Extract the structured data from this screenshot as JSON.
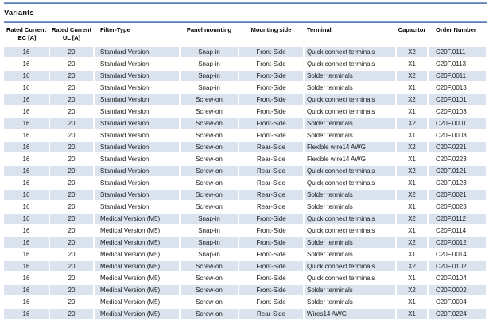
{
  "section": {
    "title": "Variants"
  },
  "colors": {
    "rule_blue": "#4e74b0",
    "row_shade": "#dbe3ee",
    "text": "#1b1b1b"
  },
  "table": {
    "column_keys": [
      "iec-current",
      "ul-current",
      "filter-type",
      "panel-mounting",
      "mounting-side",
      "terminal",
      "capacitor",
      "order-number"
    ],
    "columns": [
      {
        "line1": "Rated Current",
        "line2": "IEC [A]"
      },
      {
        "line1": "Rated Current",
        "line2": "UL [A]"
      },
      {
        "line1": "Filter-Type"
      },
      {
        "line1": "Panel mounting"
      },
      {
        "line1": "Mounting side"
      },
      {
        "line1": "Terminal"
      },
      {
        "line1": "Capacitor"
      },
      {
        "line1": "Order Number"
      }
    ],
    "rows": [
      [
        "16",
        "20",
        "Standard Version",
        "Snap-in",
        "Front-Side",
        "Quick connect terminals",
        "X2",
        "C20F.0111"
      ],
      [
        "16",
        "20",
        "Standard Version",
        "Snap-in",
        "Front-Side",
        "Quick connect terminals",
        "X1",
        "C20F.0113"
      ],
      [
        "16",
        "20",
        "Standard Version",
        "Snap-in",
        "Front-Side",
        "Solder terminals",
        "X2",
        "C20F.0011"
      ],
      [
        "16",
        "20",
        "Standard Version",
        "Snap-in",
        "Front-Side",
        "Solder terminals",
        "X1",
        "C20F.0013"
      ],
      [
        "16",
        "20",
        "Standard Version",
        "Screw-on",
        "Front-Side",
        "Quick connect terminals",
        "X2",
        "C20F.0101"
      ],
      [
        "16",
        "20",
        "Standard Version",
        "Screw-on",
        "Front-Side",
        "Quick connect terminals",
        "X1",
        "C20F.0103"
      ],
      [
        "16",
        "20",
        "Standard Version",
        "Screw-on",
        "Front-Side",
        "Solder terminals",
        "X2",
        "C20F.0001"
      ],
      [
        "16",
        "20",
        "Standard Version",
        "Screw-on",
        "Front-Side",
        "Solder terminals",
        "X1",
        "C20F.0003"
      ],
      [
        "16",
        "20",
        "Standard Version",
        "Screw-on",
        "Rear-Side",
        "Flexible wire14 AWG",
        "X2",
        "C20F.0221"
      ],
      [
        "16",
        "20",
        "Standard Version",
        "Screw-on",
        "Rear-Side",
        "Flexible wire14 AWG",
        "X1",
        "C20F.0223"
      ],
      [
        "16",
        "20",
        "Standard Version",
        "Screw-on",
        "Rear-Side",
        "Quick connect terminals",
        "X2",
        "C20F.0121"
      ],
      [
        "16",
        "20",
        "Standard Version",
        "Screw-on",
        "Rear-Side",
        "Quick connect terminals",
        "X1",
        "C20F.0123"
      ],
      [
        "16",
        "20",
        "Standard Version",
        "Screw-on",
        "Rear-Side",
        "Solder terminals",
        "X2",
        "C20F.0021"
      ],
      [
        "16",
        "20",
        "Standard Version",
        "Screw-on",
        "Rear-Side",
        "Solder terminals",
        "X1",
        "C20F.0023"
      ],
      [
        "16",
        "20",
        "Medical Version (M5)",
        "Snap-in",
        "Front-Side",
        "Quick connect terminals",
        "X2",
        "C20F.0112"
      ],
      [
        "16",
        "20",
        "Medical Version (M5)",
        "Snap-in",
        "Front-Side",
        "Quick connect terminals",
        "X1",
        "C20F.0114"
      ],
      [
        "16",
        "20",
        "Medical Version (M5)",
        "Snap-in",
        "Front-Side",
        "Solder terminals",
        "X2",
        "C20F.0012"
      ],
      [
        "16",
        "20",
        "Medical Version (M5)",
        "Snap-in",
        "Front-Side",
        "Solder terminals",
        "X1",
        "C20F.0014"
      ],
      [
        "16",
        "20",
        "Medical Version (M5)",
        "Screw-on",
        "Front-Side",
        "Quick connect terminals",
        "X2",
        "C20F.0102"
      ],
      [
        "16",
        "20",
        "Medical Version (M5)",
        "Screw-on",
        "Front-Side",
        "Quick connect terminals",
        "X1",
        "C20F.0104"
      ],
      [
        "16",
        "20",
        "Medical Version (M5)",
        "Screw-on",
        "Front-Side",
        "Solder terminals",
        "X2",
        "C20F.0002"
      ],
      [
        "16",
        "20",
        "Medical Version (M5)",
        "Screw-on",
        "Front-Side",
        "Solder terminals",
        "X1",
        "C20F.0004"
      ],
      [
        "16",
        "20",
        "Medical Version (M5)",
        "Screw-on",
        "Rear-Side",
        "Wires14 AWG",
        "X1",
        "C20F.0224"
      ]
    ]
  }
}
